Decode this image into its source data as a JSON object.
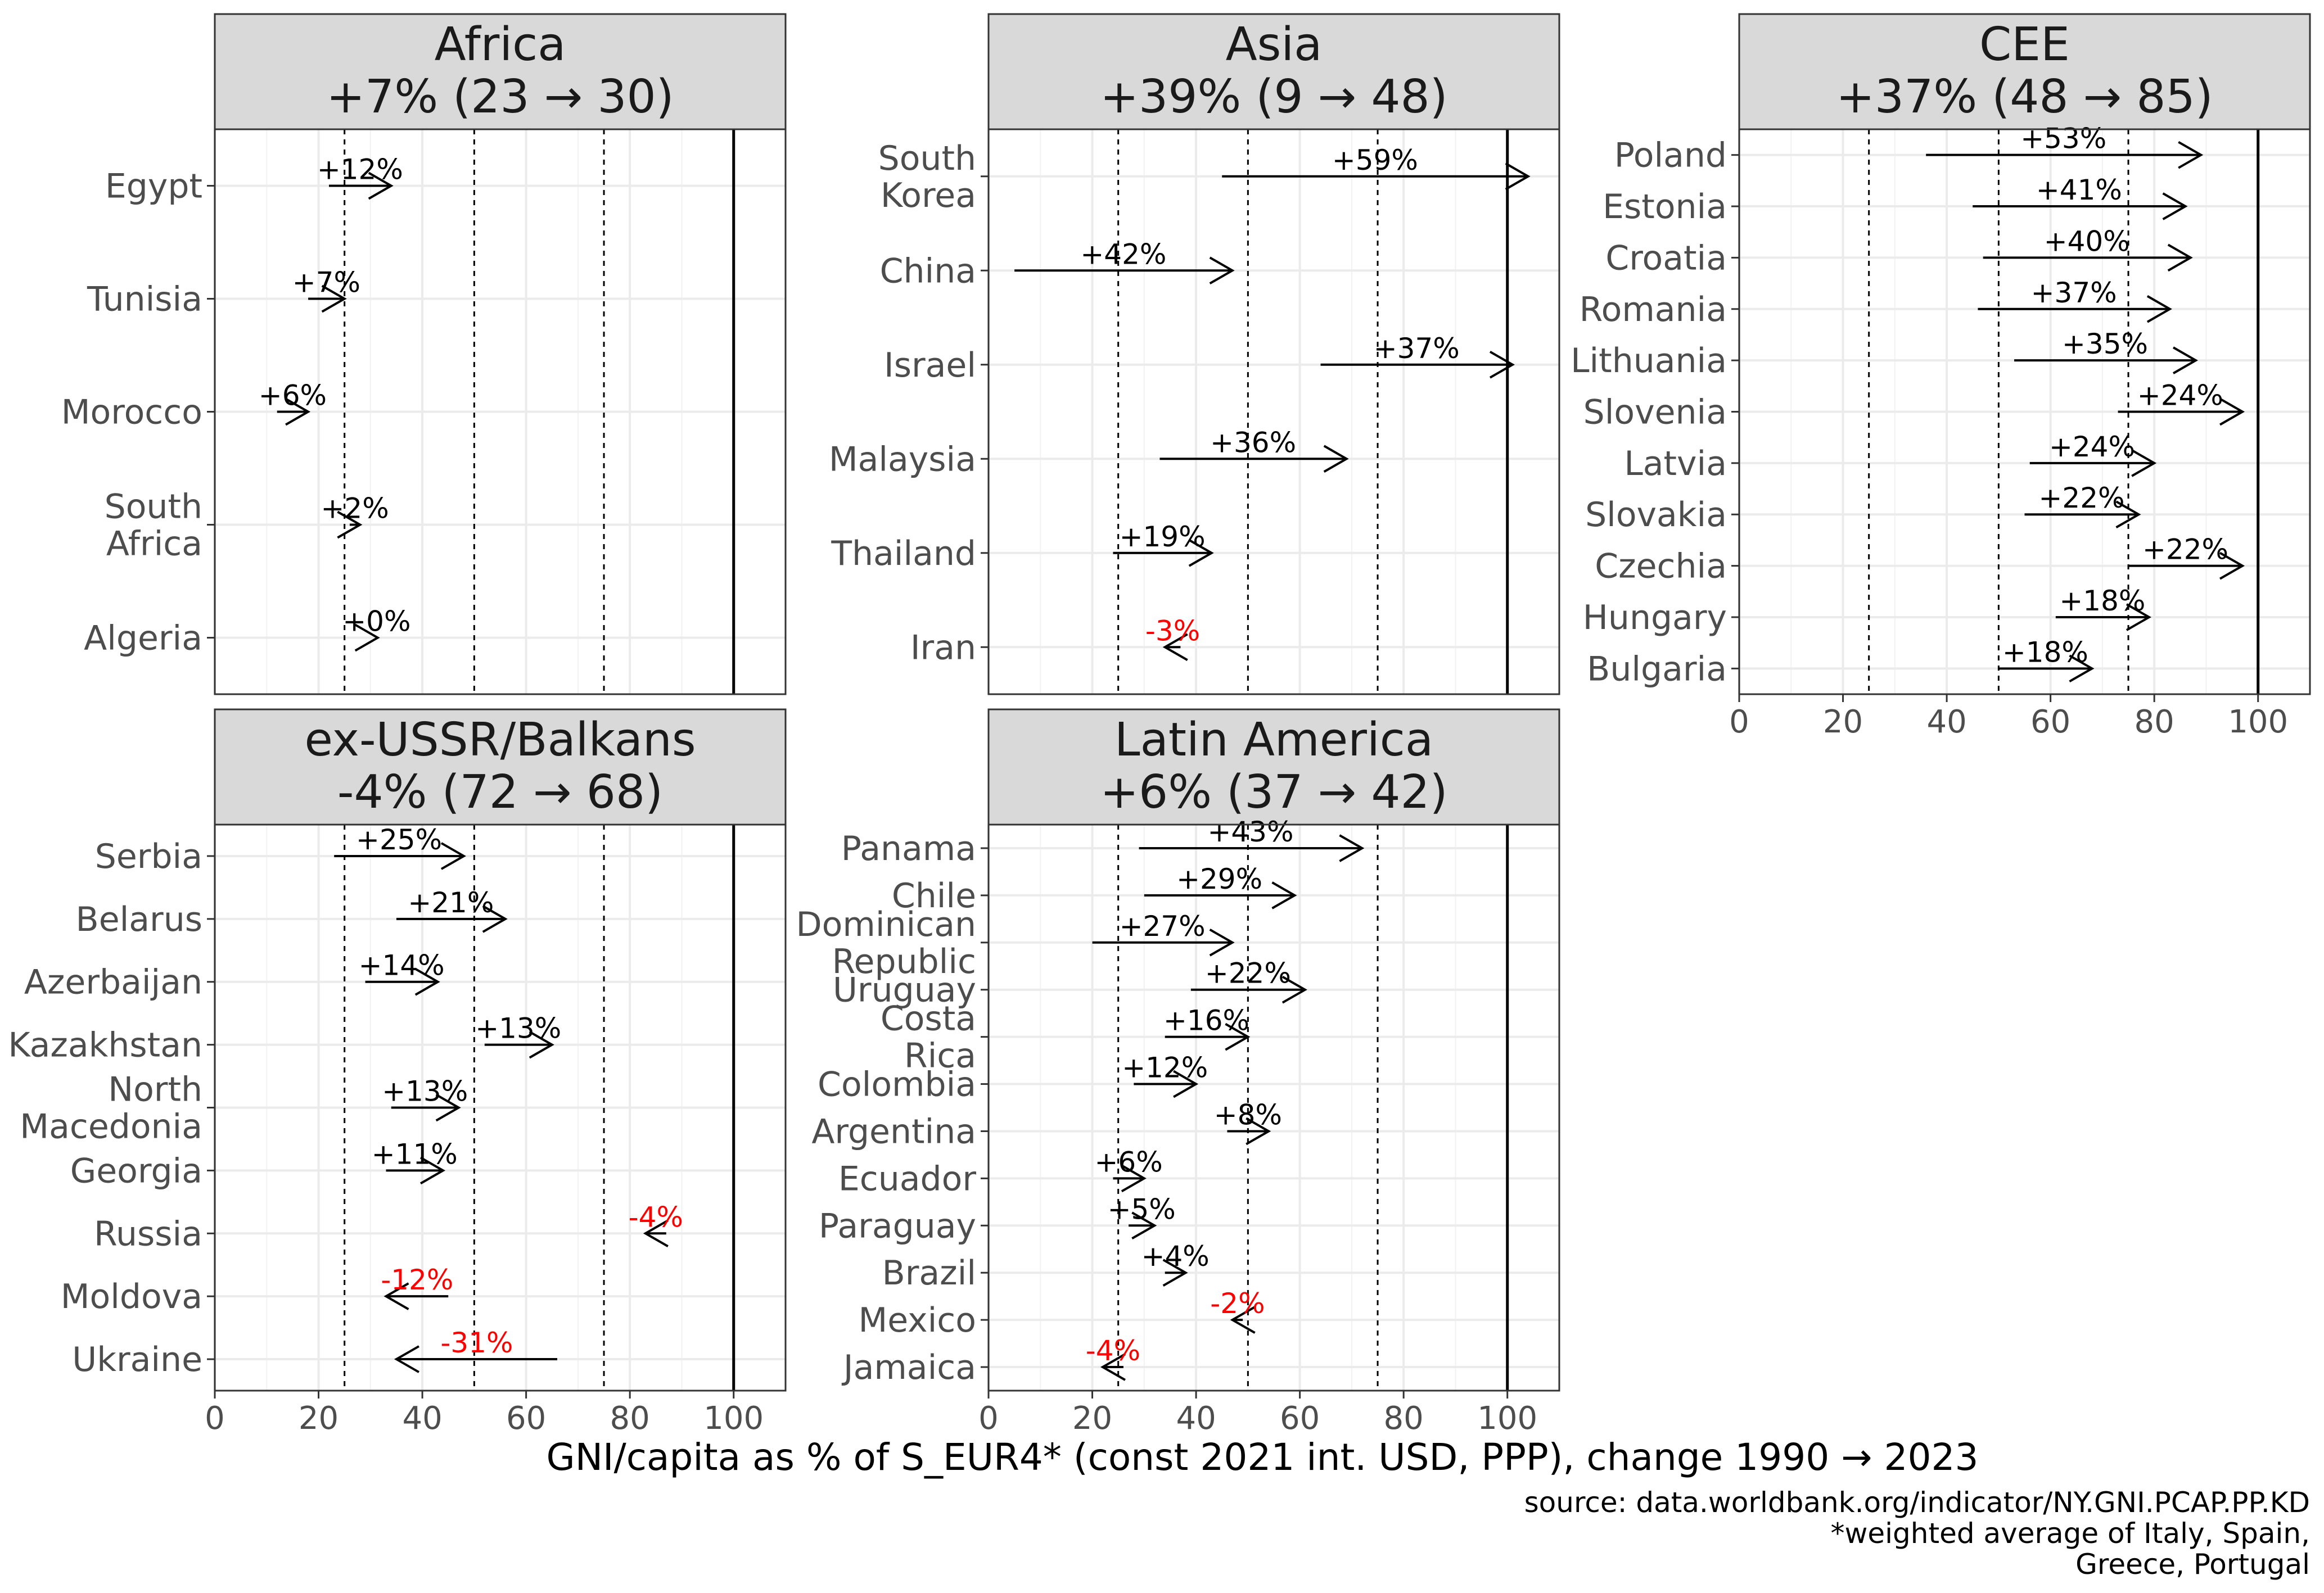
{
  "chart_data": {
    "type": "arrow",
    "xlabel": "GNI/capita as % of S_EUR4* (const 2021 int. USD, PPP), change 1990 → 2023",
    "xlim": [
      0,
      110
    ],
    "x_ticks": [
      0,
      20,
      40,
      60,
      80,
      100
    ],
    "reference_lines": {
      "dashed": [
        25,
        50,
        75
      ],
      "solid": [
        100
      ]
    },
    "caption": [
      "source: data.worldbank.org/indicator/NY.GNI.PCAP.PP.KD",
      "*weighted average of Italy, Spain,",
      "Greece, Portugal"
    ],
    "colors": {
      "positive": "#000000",
      "negative": "#ff0000",
      "strip": "#d9d9d9",
      "grid": "#ebebeb"
    },
    "panels": [
      {
        "region": "Africa",
        "summary": "+7% (23 → 30)",
        "countries": [
          {
            "name": "Egypt",
            "start": 22,
            "end": 34,
            "label": "+12%"
          },
          {
            "name": "Tunisia",
            "start": 18,
            "end": 25,
            "label": "+7%"
          },
          {
            "name": "Morocco",
            "start": 12,
            "end": 18,
            "label": "+6%"
          },
          {
            "name": "South Africa",
            "start": 26,
            "end": 28,
            "label": "+2%"
          },
          {
            "name": "Algeria",
            "start": 31,
            "end": 31.4,
            "label": "+0%"
          }
        ]
      },
      {
        "region": "Asia",
        "summary": "+39% (9 → 48)",
        "countries": [
          {
            "name": "South Korea",
            "start": 45,
            "end": 104,
            "label": "+59%"
          },
          {
            "name": "China",
            "start": 5,
            "end": 47,
            "label": "+42%"
          },
          {
            "name": "Israel",
            "start": 64,
            "end": 101,
            "label": "+37%"
          },
          {
            "name": "Malaysia",
            "start": 33,
            "end": 69,
            "label": "+36%"
          },
          {
            "name": "Thailand",
            "start": 24,
            "end": 43,
            "label": "+19%"
          },
          {
            "name": "Iran",
            "start": 37,
            "end": 34,
            "label": "-3%"
          }
        ]
      },
      {
        "region": "CEE",
        "summary": "+37% (48 → 85)",
        "countries": [
          {
            "name": "Poland",
            "start": 36,
            "end": 89,
            "label": "+53%"
          },
          {
            "name": "Estonia",
            "start": 45,
            "end": 86,
            "label": "+41%"
          },
          {
            "name": "Croatia",
            "start": 47,
            "end": 87,
            "label": "+40%"
          },
          {
            "name": "Romania",
            "start": 46,
            "end": 83,
            "label": "+37%"
          },
          {
            "name": "Lithuania",
            "start": 53,
            "end": 88,
            "label": "+35%"
          },
          {
            "name": "Slovenia",
            "start": 73,
            "end": 97,
            "label": "+24%"
          },
          {
            "name": "Latvia",
            "start": 56,
            "end": 80,
            "label": "+24%"
          },
          {
            "name": "Slovakia",
            "start": 55,
            "end": 77,
            "label": "+22%"
          },
          {
            "name": "Czechia",
            "start": 75,
            "end": 97,
            "label": "+22%"
          },
          {
            "name": "Hungary",
            "start": 61,
            "end": 79,
            "label": "+18%"
          },
          {
            "name": "Bulgaria",
            "start": 50,
            "end": 68,
            "label": "+18%"
          }
        ]
      },
      {
        "region": "ex-USSR/Balkans",
        "summary": "-4% (72 → 68)",
        "countries": [
          {
            "name": "Serbia",
            "start": 23,
            "end": 48,
            "label": "+25%"
          },
          {
            "name": "Belarus",
            "start": 35,
            "end": 56,
            "label": "+21%"
          },
          {
            "name": "Azerbaijan",
            "start": 29,
            "end": 43,
            "label": "+14%"
          },
          {
            "name": "Kazakhstan",
            "start": 52,
            "end": 65,
            "label": "+13%"
          },
          {
            "name": "North Macedonia",
            "start": 34,
            "end": 47,
            "label": "+13%"
          },
          {
            "name": "Georgia",
            "start": 33,
            "end": 44,
            "label": "+11%"
          },
          {
            "name": "Russia",
            "start": 87,
            "end": 83,
            "label": "-4%"
          },
          {
            "name": "Moldova",
            "start": 45,
            "end": 33,
            "label": "-12%"
          },
          {
            "name": "Ukraine",
            "start": 66,
            "end": 35,
            "label": "-31%"
          }
        ]
      },
      {
        "region": "Latin America",
        "summary": "+6% (37 → 42)",
        "countries": [
          {
            "name": "Panama",
            "start": 29,
            "end": 72,
            "label": "+43%"
          },
          {
            "name": "Chile",
            "start": 30,
            "end": 59,
            "label": "+29%"
          },
          {
            "name": "Dominican Republic",
            "start": 20,
            "end": 47,
            "label": "+27%"
          },
          {
            "name": "Uruguay",
            "start": 39,
            "end": 61,
            "label": "+22%"
          },
          {
            "name": "Costa Rica",
            "start": 34,
            "end": 50,
            "label": "+16%"
          },
          {
            "name": "Colombia",
            "start": 28,
            "end": 40,
            "label": "+12%"
          },
          {
            "name": "Argentina",
            "start": 46,
            "end": 54,
            "label": "+8%"
          },
          {
            "name": "Ecuador",
            "start": 24,
            "end": 30,
            "label": "+6%"
          },
          {
            "name": "Paraguay",
            "start": 27,
            "end": 32,
            "label": "+5%"
          },
          {
            "name": "Brazil",
            "start": 34,
            "end": 38,
            "label": "+4%"
          },
          {
            "name": "Mexico",
            "start": 49,
            "end": 47,
            "label": "-2%"
          },
          {
            "name": "Jamaica",
            "start": 26,
            "end": 22,
            "label": "-4%"
          }
        ]
      }
    ]
  }
}
